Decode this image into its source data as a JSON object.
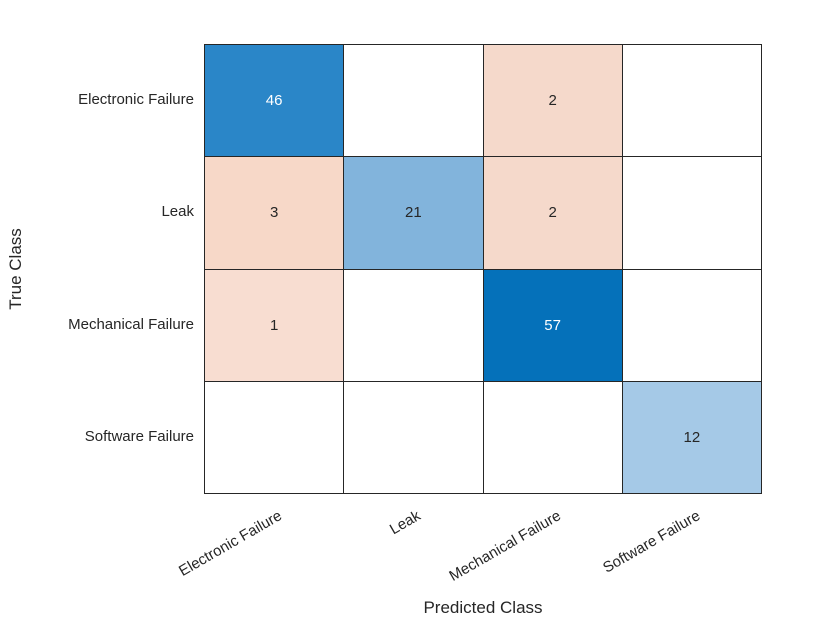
{
  "figure": {
    "background": "#ffffff",
    "axis_text_color": "#262626",
    "grid_line_color": "#262626",
    "dark_cell_text_color": "#ffffff",
    "light_cell_text_color": "#262626"
  },
  "chart_data": {
    "type": "heatmap",
    "subtype": "confusion-matrix",
    "title": "",
    "xlabel": "Predicted Class",
    "ylabel": "True Class",
    "classes": [
      "Electronic Failure",
      "Leak",
      "Mechanical Failure",
      "Software Failure"
    ],
    "matrix": [
      [
        46,
        null,
        2,
        null
      ],
      [
        3,
        21,
        2,
        null
      ],
      [
        1,
        null,
        57,
        null
      ],
      [
        null,
        null,
        null,
        12
      ]
    ],
    "cell_colors": [
      [
        "#2a86c8",
        "#ffffff",
        "#f5d9cb",
        "#ffffff"
      ],
      [
        "#f7d8c8",
        "#82b4dc",
        "#f5d9cb",
        "#ffffff"
      ],
      [
        "#f8ddd1",
        "#ffffff",
        "#0571ba",
        "#ffffff"
      ],
      [
        "#ffffff",
        "#ffffff",
        "#ffffff",
        "#a5c9e7"
      ]
    ],
    "cell_text_colors": [
      [
        "#ffffff",
        null,
        "#262626",
        null
      ],
      [
        "#262626",
        "#262626",
        "#262626",
        null
      ],
      [
        "#262626",
        null,
        "#ffffff",
        null
      ],
      [
        null,
        null,
        null,
        "#262626"
      ]
    ],
    "diagonal_color_max": "#0571ba",
    "off_diagonal_color": "#f5d9cb",
    "grid": true,
    "legend": false,
    "x_tick_rotation_deg": -30
  }
}
